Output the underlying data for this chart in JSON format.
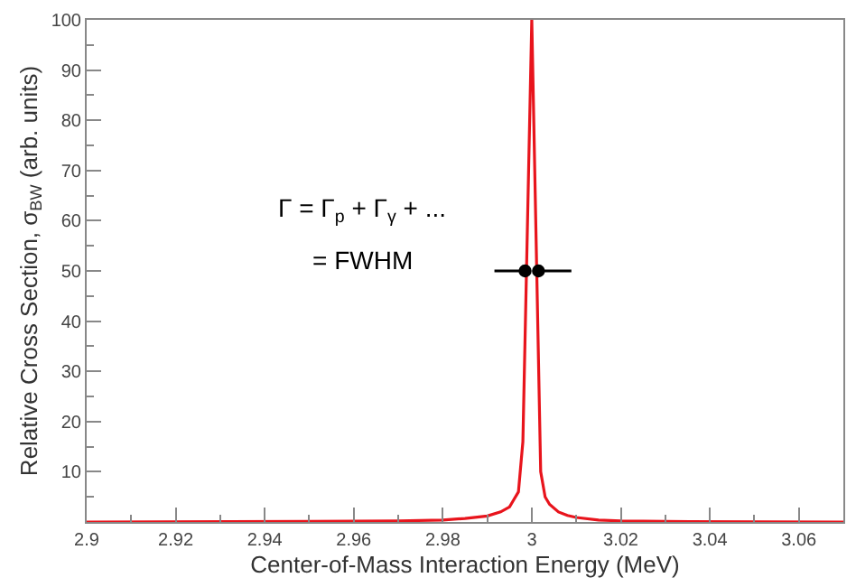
{
  "chart_data": {
    "type": "line",
    "xlabel": "Center-of-Mass Interaction Energy (MeV)",
    "ylabel": "Relative Cross Section, σ$_{BW}$ (arb. units)",
    "x": [
      2.9,
      2.95,
      2.97,
      2.98,
      2.985,
      2.99,
      2.993,
      2.995,
      2.996,
      2.997,
      2.998,
      3.0,
      3.002,
      3.003,
      3.004,
      3.006,
      3.008,
      3.01,
      3.015,
      3.02,
      3.03,
      3.07
    ],
    "series": [
      {
        "color": "#e8141c",
        "values": [
          0,
          0.1,
          0.2,
          0.4,
          0.7,
          1.2,
          2,
          3,
          4.5,
          6,
          16,
          100,
          10,
          5,
          3.5,
          2,
          1.3,
          0.9,
          0.4,
          0.2,
          0.1,
          0
        ]
      }
    ],
    "xlim": [
      2.9,
      3.07
    ],
    "xticks": [
      2.9,
      2.92,
      2.94,
      2.96,
      2.98,
      3,
      3.02,
      3.04,
      3.06
    ],
    "ylim": [
      0,
      100
    ],
    "yticks": [
      10,
      20,
      30,
      40,
      50,
      60,
      70,
      80,
      90,
      100
    ],
    "legend": false,
    "marker": "none",
    "line_style": "solid",
    "annotations": [
      "Γ = Γ$_{p}$ + Γ$_{γ}$ + ...",
      "= FWHM"
    ]
  }
}
